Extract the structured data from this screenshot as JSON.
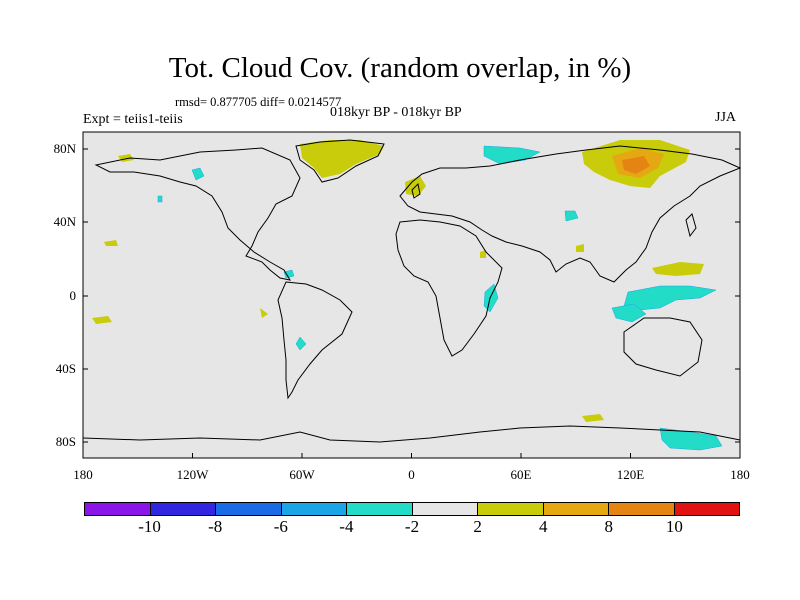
{
  "header": {
    "title": "Tot. Cloud Cov. (random overlap, in %)",
    "stats": "rmsd= 0.877705 diff= 0.0214577",
    "subtitle": "018kyr BP - 018kyr BP",
    "experiment": "Expt = teiis1-teiis",
    "season": "JJA"
  },
  "map": {
    "background_color": "#e6e6e6",
    "y_ticks": [
      "80N",
      "40N",
      "0",
      "40S",
      "80S"
    ],
    "x_ticks": [
      "180",
      "120W",
      "60W",
      "0",
      "60E",
      "120E",
      "180"
    ]
  },
  "colorbar": {
    "colors": [
      "#8a16e8",
      "#3226e0",
      "#1a6ce6",
      "#1aa6e6",
      "#22dcc8",
      "#e6e6e6",
      "#c8cc0a",
      "#e6a812",
      "#e48412",
      "#e05012",
      "#e01212"
    ],
    "labels": [
      "-10",
      "-8",
      "-6",
      "-4",
      "-2",
      "2",
      "4",
      "8",
      "10"
    ]
  },
  "legend_colors": {
    "positive_small": "#c8cc0a",
    "positive_medium": "#e6a812",
    "positive_large": "#e48412",
    "negative_small": "#22dcc8"
  }
}
